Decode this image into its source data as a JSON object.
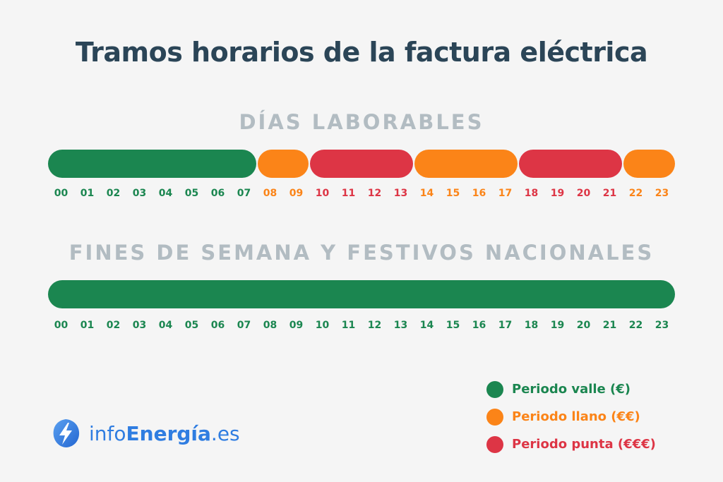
{
  "title": "Tramos horarios de la factura eléctrica",
  "colors": {
    "valle": "#1b8650",
    "llano": "#fb8418",
    "punta": "#dd3545",
    "title": "#2b4557",
    "section": "#b2bcc2",
    "brand": "#2f7de1"
  },
  "weekdays": {
    "title": "DÍAS LABORABLES",
    "segments": [
      {
        "start": 0,
        "end": 8,
        "period": "valle"
      },
      {
        "start": 8,
        "end": 10,
        "period": "llano"
      },
      {
        "start": 10,
        "end": 14,
        "period": "punta"
      },
      {
        "start": 14,
        "end": 18,
        "period": "llano"
      },
      {
        "start": 18,
        "end": 22,
        "period": "punta"
      },
      {
        "start": 22,
        "end": 24,
        "period": "llano"
      }
    ],
    "hours": [
      {
        "label": "00",
        "period": "valle"
      },
      {
        "label": "01",
        "period": "valle"
      },
      {
        "label": "02",
        "period": "valle"
      },
      {
        "label": "03",
        "period": "valle"
      },
      {
        "label": "04",
        "period": "valle"
      },
      {
        "label": "05",
        "period": "valle"
      },
      {
        "label": "06",
        "period": "valle"
      },
      {
        "label": "07",
        "period": "valle"
      },
      {
        "label": "08",
        "period": "llano"
      },
      {
        "label": "09",
        "period": "llano"
      },
      {
        "label": "10",
        "period": "punta"
      },
      {
        "label": "11",
        "period": "punta"
      },
      {
        "label": "12",
        "period": "punta"
      },
      {
        "label": "13",
        "period": "punta"
      },
      {
        "label": "14",
        "period": "llano"
      },
      {
        "label": "15",
        "period": "llano"
      },
      {
        "label": "16",
        "period": "llano"
      },
      {
        "label": "17",
        "period": "llano"
      },
      {
        "label": "18",
        "period": "punta"
      },
      {
        "label": "19",
        "period": "punta"
      },
      {
        "label": "20",
        "period": "punta"
      },
      {
        "label": "21",
        "period": "punta"
      },
      {
        "label": "22",
        "period": "llano"
      },
      {
        "label": "23",
        "period": "llano"
      }
    ]
  },
  "weekends": {
    "title": "FINES DE SEMANA Y FESTIVOS NACIONALES",
    "segments": [
      {
        "start": 0,
        "end": 24,
        "period": "valle"
      }
    ],
    "hours": [
      {
        "label": "00",
        "period": "valle"
      },
      {
        "label": "01",
        "period": "valle"
      },
      {
        "label": "02",
        "period": "valle"
      },
      {
        "label": "03",
        "period": "valle"
      },
      {
        "label": "04",
        "period": "valle"
      },
      {
        "label": "05",
        "period": "valle"
      },
      {
        "label": "06",
        "period": "valle"
      },
      {
        "label": "07",
        "period": "valle"
      },
      {
        "label": "08",
        "period": "valle"
      },
      {
        "label": "09",
        "period": "valle"
      },
      {
        "label": "10",
        "period": "valle"
      },
      {
        "label": "11",
        "period": "valle"
      },
      {
        "label": "12",
        "period": "valle"
      },
      {
        "label": "13",
        "period": "valle"
      },
      {
        "label": "14",
        "period": "valle"
      },
      {
        "label": "15",
        "period": "valle"
      },
      {
        "label": "16",
        "period": "valle"
      },
      {
        "label": "17",
        "period": "valle"
      },
      {
        "label": "18",
        "period": "valle"
      },
      {
        "label": "19",
        "period": "valle"
      },
      {
        "label": "20",
        "period": "valle"
      },
      {
        "label": "21",
        "period": "valle"
      },
      {
        "label": "22",
        "period": "valle"
      },
      {
        "label": "23",
        "period": "valle"
      }
    ]
  },
  "legend": [
    {
      "period": "valle",
      "label": "Periodo valle (€)"
    },
    {
      "period": "llano",
      "label": "Periodo llano (€€)"
    },
    {
      "period": "punta",
      "label": "Periodo punta (€€€)"
    }
  ],
  "brand": {
    "icon": "lightning-bolt-icon",
    "prefix": "info",
    "name": "Energía",
    "suffix": ".es"
  }
}
